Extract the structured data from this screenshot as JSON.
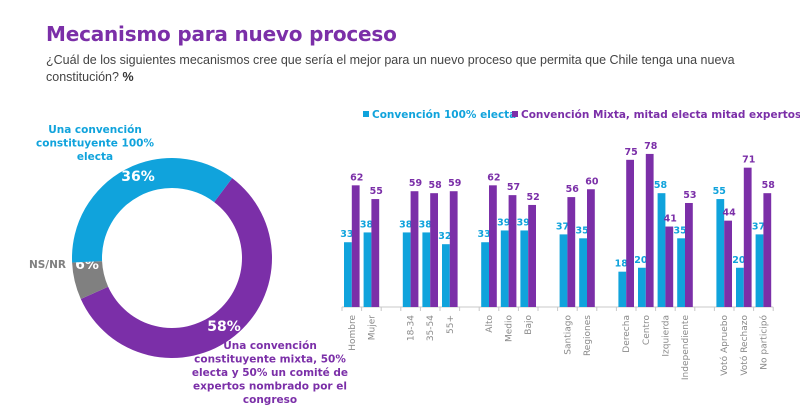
{
  "header": {
    "title": "Mecanismo para nuevo proceso",
    "question": "¿Cuál de los siguientes mecanismos cree que sería el mejor para un nuevo proceso que permita que Chile tenga una nueva constitución?",
    "unit": "%"
  },
  "colors": {
    "blue": "#10a3dc",
    "purple": "#7b2fa8",
    "gray": "#808080",
    "axis": "#c8c8c8"
  },
  "chart_data": [
    {
      "type": "pie",
      "variant": "donut",
      "title": "",
      "slices": [
        {
          "label": "Una convención constituyente mixta, 50% electa y 50% un comité de expertos nombrado por el congreso",
          "value": 58,
          "display": "58%",
          "color": "#7b2fa8",
          "label_lines": [
            "Una convención",
            "constituyente mixta, 50%",
            "electa y 50% un comité de",
            "expertos nombrado por el",
            "congreso"
          ]
        },
        {
          "label": "NS/NR",
          "value": 6,
          "display": "6%",
          "color": "#808080",
          "label_lines": [
            "NS/NR"
          ]
        },
        {
          "label": "Una convención constituyente 100% electa",
          "value": 36,
          "display": "36%",
          "color": "#10a3dc",
          "label_lines": [
            "Una convención",
            "constituyente 100%",
            "electa"
          ]
        }
      ]
    },
    {
      "type": "bar",
      "title": "",
      "xlabel": "",
      "ylabel": "",
      "ylim": [
        0,
        80
      ],
      "grid": false,
      "legend_position": "top",
      "categories": [
        "Hombre",
        "Mujer",
        "",
        "18-34",
        "35-54",
        "55+",
        "",
        "Alto",
        "Medio",
        "Bajo",
        "",
        "Santiago",
        "Regiones",
        "",
        "Derecha",
        "Centro",
        "Izquierda",
        "Independiente",
        "",
        "Votó Apruebo",
        "Votó Rechazo",
        "No participó"
      ],
      "series": [
        {
          "name": "Convención 100% electa",
          "color": "#10a3dc",
          "values": [
            33,
            38,
            null,
            38,
            38,
            32,
            null,
            33,
            39,
            39,
            null,
            37,
            35,
            null,
            18,
            20,
            58,
            35,
            null,
            55,
            20,
            37
          ]
        },
        {
          "name": "Convención Mixta, mitad electa mitad expertos",
          "color": "#7b2fa8",
          "values": [
            62,
            55,
            null,
            59,
            58,
            59,
            null,
            62,
            57,
            52,
            null,
            56,
            60,
            null,
            75,
            78,
            41,
            53,
            null,
            44,
            71,
            58
          ]
        }
      ]
    }
  ]
}
